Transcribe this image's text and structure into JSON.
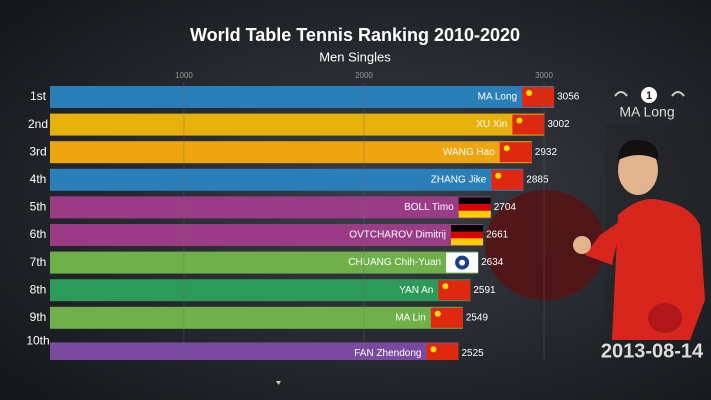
{
  "chart_data": {
    "type": "bar",
    "title": "World Table Tennis Ranking 2010-2020",
    "subtitle": "Men Singles",
    "ranks": [
      "1st",
      "2nd",
      "3rd",
      "4th",
      "5th",
      "6th",
      "7th",
      "8th",
      "9th",
      "10th"
    ],
    "categories": [
      "MA Long",
      "XU Xin",
      "WANG Hao",
      "ZHANG Jike",
      "BOLL Timo",
      "OVTCHAROV Dimitrij",
      "CHUANG Chih-Yuan",
      "YAN An",
      "MA Lin",
      "FAN Zhendong"
    ],
    "values": [
      3056,
      3002,
      2932,
      2885,
      2704,
      2661,
      2634,
      2591,
      2549,
      2525
    ],
    "colors": [
      "#2b7fb8",
      "#e6b10c",
      "#eea50f",
      "#2b7fb8",
      "#9b3d86",
      "#9b3d86",
      "#6fb04a",
      "#2e9a5a",
      "#6fb04a",
      "#7a4aa0"
    ],
    "flags": [
      "cn",
      "cn",
      "cn",
      "cn",
      "de",
      "de",
      "tpe",
      "cn",
      "cn",
      "cn"
    ],
    "xlim": [
      256,
      3111
    ],
    "xticks": [
      1000,
      2000,
      3000
    ],
    "grid": true,
    "badge": 1,
    "leader": "MA Long",
    "date": "2013-08-14"
  }
}
